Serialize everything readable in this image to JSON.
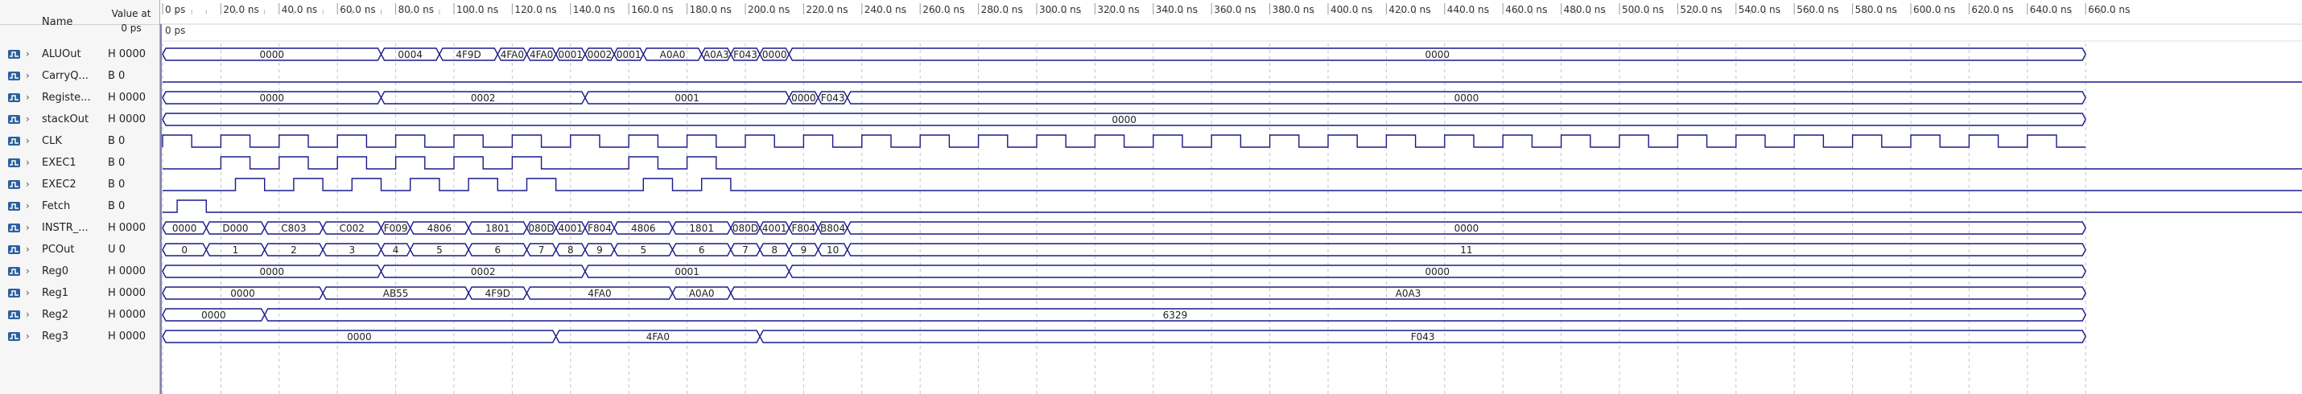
{
  "header": {
    "name_label": "Name",
    "value_label": "Value at",
    "value_time": "0 ps"
  },
  "timeline": {
    "cursor_label": "0 ps",
    "ticks": [
      "0 ps",
      "20.0 ns",
      "40.0 ns",
      "60.0 ns",
      "80.0 ns",
      "100.0 ns",
      "120.0 ns",
      "140.0 ns",
      "160.0 ns",
      "180.0 ns",
      "200.0 ns",
      "220.0 ns",
      "240.0 ns",
      "260.0 ns",
      "280.0 ns",
      "300.0 ns",
      "320.0 ns",
      "340.0 ns",
      "360.0 ns",
      "380.0 ns",
      "400.0 ns",
      "420.0 ns",
      "440.0 ns",
      "460.0 ns",
      "480.0 ns",
      "500.0 ns",
      "520.0 ns",
      "540.0 ns",
      "560.0 ns",
      "580.0 ns",
      "600.0 ns",
      "620.0 ns",
      "640.0 ns",
      "660.0 ns"
    ]
  },
  "colors": {
    "wave": "#1a1a8c",
    "grid": "#c4c4c4",
    "icon": "#2b5f9e"
  },
  "signals": [
    {
      "name": "ALUOut",
      "value": "H 0000",
      "kind": "bus",
      "segments": [
        [
          0,
          15,
          "0000"
        ],
        [
          15,
          19,
          "0004"
        ],
        [
          19,
          23,
          "4F9D"
        ],
        [
          23,
          25,
          "4FA0"
        ],
        [
          25,
          27,
          "4FA0"
        ],
        [
          27,
          29,
          "0001"
        ],
        [
          29,
          31,
          "0002"
        ],
        [
          31,
          33,
          "0001"
        ],
        [
          33,
          37,
          "A0A0"
        ],
        [
          37,
          39,
          "A0A3"
        ],
        [
          39,
          41,
          "F043"
        ],
        [
          41,
          43,
          "0000"
        ],
        [
          43,
          132,
          "0000"
        ]
      ]
    },
    {
      "name": "CarryQ...",
      "value": "B 0",
      "kind": "bit",
      "edges": []
    },
    {
      "name": "Registe...",
      "value": "H 0000",
      "kind": "bus",
      "segments": [
        [
          0,
          15,
          "0000"
        ],
        [
          15,
          29,
          "0002"
        ],
        [
          29,
          43,
          "0001"
        ],
        [
          43,
          45,
          "0000"
        ],
        [
          45,
          47,
          "F043"
        ],
        [
          47,
          132,
          "0000"
        ]
      ]
    },
    {
      "name": "stackOut",
      "value": "H 0000",
      "kind": "bus",
      "segments": [
        [
          0,
          132,
          "0000"
        ]
      ]
    },
    {
      "name": "CLK",
      "value": "B 0",
      "kind": "clock",
      "period": 4
    },
    {
      "name": "EXEC1",
      "value": "B 0",
      "kind": "bit",
      "edges": [
        [
          4,
          6
        ],
        [
          8,
          10
        ],
        [
          12,
          14
        ],
        [
          16,
          18
        ],
        [
          20,
          22
        ],
        [
          24,
          26
        ],
        [
          32,
          34
        ],
        [
          36,
          38
        ]
      ]
    },
    {
      "name": "EXEC2",
      "value": "B 0",
      "kind": "bit",
      "edges": [
        [
          5,
          7
        ],
        [
          9,
          11
        ],
        [
          13,
          15
        ],
        [
          17,
          19
        ],
        [
          21,
          23
        ],
        [
          25,
          27
        ],
        [
          33,
          35
        ],
        [
          37,
          39
        ]
      ]
    },
    {
      "name": "Fetch",
      "value": "B 0",
      "kind": "bit",
      "edges": [
        [
          1,
          3
        ]
      ]
    },
    {
      "name": "INSTR_...",
      "value": "H 0000",
      "kind": "bus",
      "segments": [
        [
          0,
          3,
          "0000"
        ],
        [
          3,
          7,
          "D000"
        ],
        [
          7,
          11,
          "C803"
        ],
        [
          11,
          15,
          "C002"
        ],
        [
          15,
          17,
          "F009"
        ],
        [
          17,
          21,
          "4806"
        ],
        [
          21,
          25,
          "1801"
        ],
        [
          25,
          27,
          "080D"
        ],
        [
          27,
          29,
          "4001"
        ],
        [
          29,
          31,
          "F804"
        ],
        [
          31,
          35,
          "4806"
        ],
        [
          35,
          39,
          "1801"
        ],
        [
          39,
          41,
          "080D"
        ],
        [
          41,
          43,
          "4001"
        ],
        [
          43,
          45,
          "F804"
        ],
        [
          45,
          47,
          "B804"
        ],
        [
          47,
          132,
          "0000"
        ]
      ]
    },
    {
      "name": "PCOut",
      "value": "U 0",
      "kind": "bus",
      "segments": [
        [
          0,
          3,
          "0"
        ],
        [
          3,
          7,
          "1"
        ],
        [
          7,
          11,
          "2"
        ],
        [
          11,
          15,
          "3"
        ],
        [
          15,
          17,
          "4"
        ],
        [
          17,
          21,
          "5"
        ],
        [
          21,
          25,
          "6"
        ],
        [
          25,
          27,
          "7"
        ],
        [
          27,
          29,
          "8"
        ],
        [
          29,
          31,
          "9"
        ],
        [
          31,
          35,
          "5"
        ],
        [
          35,
          39,
          "6"
        ],
        [
          39,
          41,
          "7"
        ],
        [
          41,
          43,
          "8"
        ],
        [
          43,
          45,
          "9"
        ],
        [
          45,
          47,
          "10"
        ],
        [
          47,
          132,
          "11"
        ]
      ]
    },
    {
      "name": "Reg0",
      "value": "H 0000",
      "kind": "bus",
      "segments": [
        [
          0,
          15,
          "0000"
        ],
        [
          15,
          29,
          "0002"
        ],
        [
          29,
          43,
          "0001"
        ],
        [
          43,
          132,
          "0000"
        ]
      ]
    },
    {
      "name": "Reg1",
      "value": "H 0000",
      "kind": "bus",
      "segments": [
        [
          0,
          11,
          "0000"
        ],
        [
          11,
          21,
          "AB55"
        ],
        [
          21,
          25,
          "4F9D"
        ],
        [
          25,
          35,
          "4FA0"
        ],
        [
          35,
          39,
          "A0A0"
        ],
        [
          39,
          132,
          "A0A3"
        ]
      ]
    },
    {
      "name": "Reg2",
      "value": "H 0000",
      "kind": "bus",
      "segments": [
        [
          0,
          7,
          "0000"
        ],
        [
          7,
          132,
          "6329"
        ]
      ]
    },
    {
      "name": "Reg3",
      "value": "H 0000",
      "kind": "bus",
      "segments": [
        [
          0,
          27,
          "0000"
        ],
        [
          27,
          41,
          "4FA0"
        ],
        [
          41,
          132,
          "F043"
        ]
      ]
    }
  ]
}
